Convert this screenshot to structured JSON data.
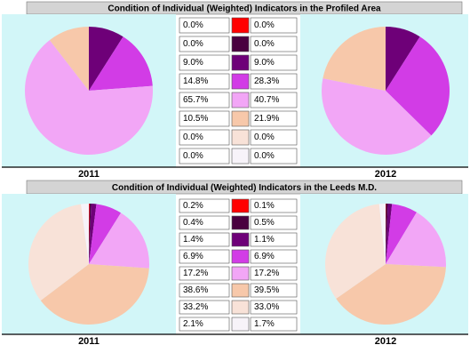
{
  "chart_data": [
    {
      "type": "pie",
      "title": "Condition of Individual (Weighted) Indicators in the Profiled Area",
      "colors": [
        "#ff0000",
        "#4a003f",
        "#6e0078",
        "#d23ce6",
        "#f2a6f6",
        "#f7c8aa",
        "#f8e2d8",
        "#f7f3f9"
      ],
      "series": [
        {
          "name": "2011",
          "values": [
            0.0,
            0.0,
            9.0,
            14.8,
            65.7,
            10.5,
            0.0,
            0.0
          ],
          "value_labels": [
            "0.0%",
            "0.0%",
            "9.0%",
            "14.8%",
            "65.7%",
            "10.5%",
            "0.0%",
            "0.0%"
          ]
        },
        {
          "name": "2012",
          "values": [
            0.0,
            0.0,
            9.0,
            28.3,
            40.7,
            21.9,
            0.0,
            0.0
          ],
          "value_labels": [
            "0.0%",
            "0.0%",
            "9.0%",
            "28.3%",
            "40.7%",
            "21.9%",
            "0.0%",
            "0.0%"
          ]
        }
      ]
    },
    {
      "type": "pie",
      "title": "Condition of Individual (Weighted) Indicators in the Leeds M.D.",
      "colors": [
        "#ff0000",
        "#4a003f",
        "#6e0078",
        "#d23ce6",
        "#f2a6f6",
        "#f7c8aa",
        "#f8e2d8",
        "#f7f3f9"
      ],
      "series": [
        {
          "name": "2011",
          "values": [
            0.2,
            0.4,
            1.4,
            6.9,
            17.2,
            38.6,
            33.2,
            2.1
          ],
          "value_labels": [
            "0.2%",
            "0.4%",
            "1.4%",
            "6.9%",
            "17.2%",
            "38.6%",
            "33.2%",
            "2.1%"
          ]
        },
        {
          "name": "2012",
          "values": [
            0.1,
            0.5,
            1.1,
            6.9,
            17.2,
            39.5,
            33.0,
            1.7
          ],
          "value_labels": [
            "0.1%",
            "0.5%",
            "1.1%",
            "6.9%",
            "17.2%",
            "39.5%",
            "33.0%",
            "1.7%"
          ]
        }
      ]
    }
  ]
}
